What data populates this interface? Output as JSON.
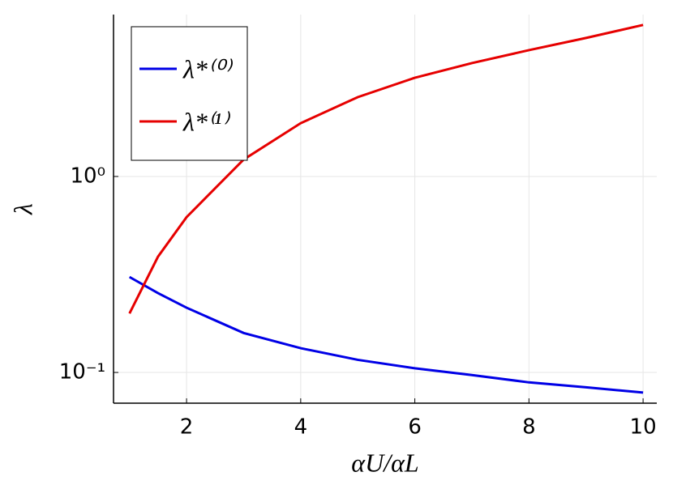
{
  "chart_data": {
    "type": "line",
    "xlabel": "αU/αL",
    "ylabel": "λ",
    "x": [
      1,
      1.5,
      2,
      3,
      4,
      5,
      6,
      7,
      8,
      9,
      10
    ],
    "series": [
      {
        "name": "λ*⁽⁰⁾",
        "color": "#0000e6",
        "values": [
          0.307,
          0.254,
          0.214,
          0.159,
          0.133,
          0.116,
          0.105,
          0.097,
          0.089,
          0.084,
          0.079
        ]
      },
      {
        "name": "λ*⁽¹⁾",
        "color": "#e60000",
        "values": [
          0.2,
          0.39,
          0.62,
          1.22,
          1.87,
          2.54,
          3.19,
          3.79,
          4.41,
          5.09,
          5.93
        ]
      }
    ],
    "xlim": [
      0.72,
      10.24
    ],
    "xticks": [
      2,
      4,
      6,
      8,
      10
    ],
    "ylim": [
      0.0697,
      6.7
    ],
    "yticks": [
      {
        "value": 1,
        "label": "10⁰"
      },
      {
        "value": 0.1,
        "label": "10⁻¹"
      }
    ],
    "ylog": true,
    "grid": true,
    "legend": "top-left"
  }
}
